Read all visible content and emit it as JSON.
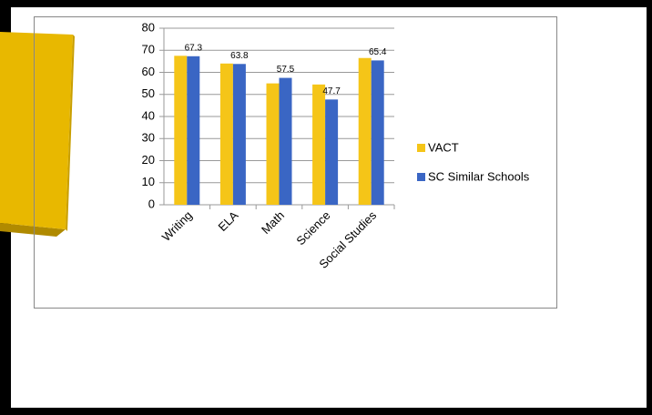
{
  "chart_data": {
    "type": "bar",
    "categories": [
      "Writing",
      "ELA",
      "Math",
      "Science",
      "Social Studies"
    ],
    "series": [
      {
        "name": "VACT",
        "color": "#f5c518",
        "values": [
          67.5,
          64,
          55,
          54.5,
          66.5
        ]
      },
      {
        "name": "SC Similar Schools",
        "color": "#3a66c4",
        "values": [
          67.3,
          63.8,
          57.5,
          47.7,
          65.4
        ],
        "data_labels": true
      }
    ],
    "ylim": [
      0,
      80
    ],
    "yticks": [
      0,
      10,
      20,
      30,
      40,
      50,
      60,
      70,
      80
    ],
    "grid": true,
    "legend": "right"
  }
}
